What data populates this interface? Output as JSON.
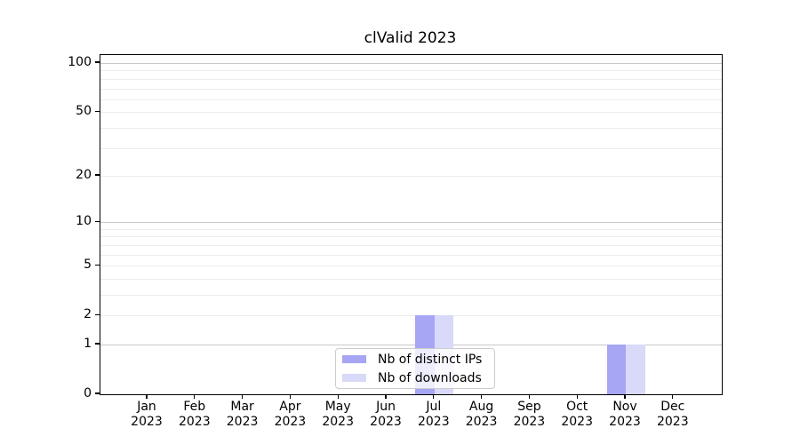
{
  "chart_data": {
    "type": "bar",
    "title": "clValid 2023",
    "categories": [
      "Jan 2023",
      "Feb 2023",
      "Mar 2023",
      "Apr 2023",
      "May 2023",
      "Jun 2023",
      "Jul 2023",
      "Aug 2023",
      "Sep 2023",
      "Oct 2023",
      "Nov 2023",
      "Dec 2023"
    ],
    "x_tick_month": [
      "Jan",
      "Feb",
      "Mar",
      "Apr",
      "May",
      "Jun",
      "Jul",
      "Aug",
      "Sep",
      "Oct",
      "Nov",
      "Dec"
    ],
    "x_tick_year": "2023",
    "series": [
      {
        "name": "Nb of distinct IPs",
        "color": "#a6a6f5",
        "values": [
          0,
          0,
          0,
          0,
          0,
          0,
          2,
          0,
          0,
          0,
          1,
          0
        ]
      },
      {
        "name": "Nb of downloads",
        "color": "#d9d9f9",
        "values": [
          0,
          0,
          0,
          0,
          0,
          0,
          2,
          0,
          0,
          0,
          1,
          0
        ]
      }
    ],
    "yscale": "log1p",
    "ylim": [
      0,
      112
    ],
    "y_ticks": [
      0,
      1,
      2,
      5,
      10,
      20,
      50,
      100
    ],
    "grid": {
      "major_ticks": [
        1,
        10,
        100
      ],
      "minor_ticks": [
        2,
        3,
        4,
        5,
        6,
        7,
        8,
        9,
        20,
        30,
        40,
        50,
        60,
        70,
        80,
        90
      ],
      "major_color": "#c8c8c8",
      "minor_color": "#ececec"
    },
    "legend": {
      "items": [
        {
          "label": "Nb of distinct IPs"
        },
        {
          "label": "Nb of downloads"
        }
      ],
      "position": "lower center"
    },
    "axis_color": "#000000",
    "background": "#ffffff"
  }
}
